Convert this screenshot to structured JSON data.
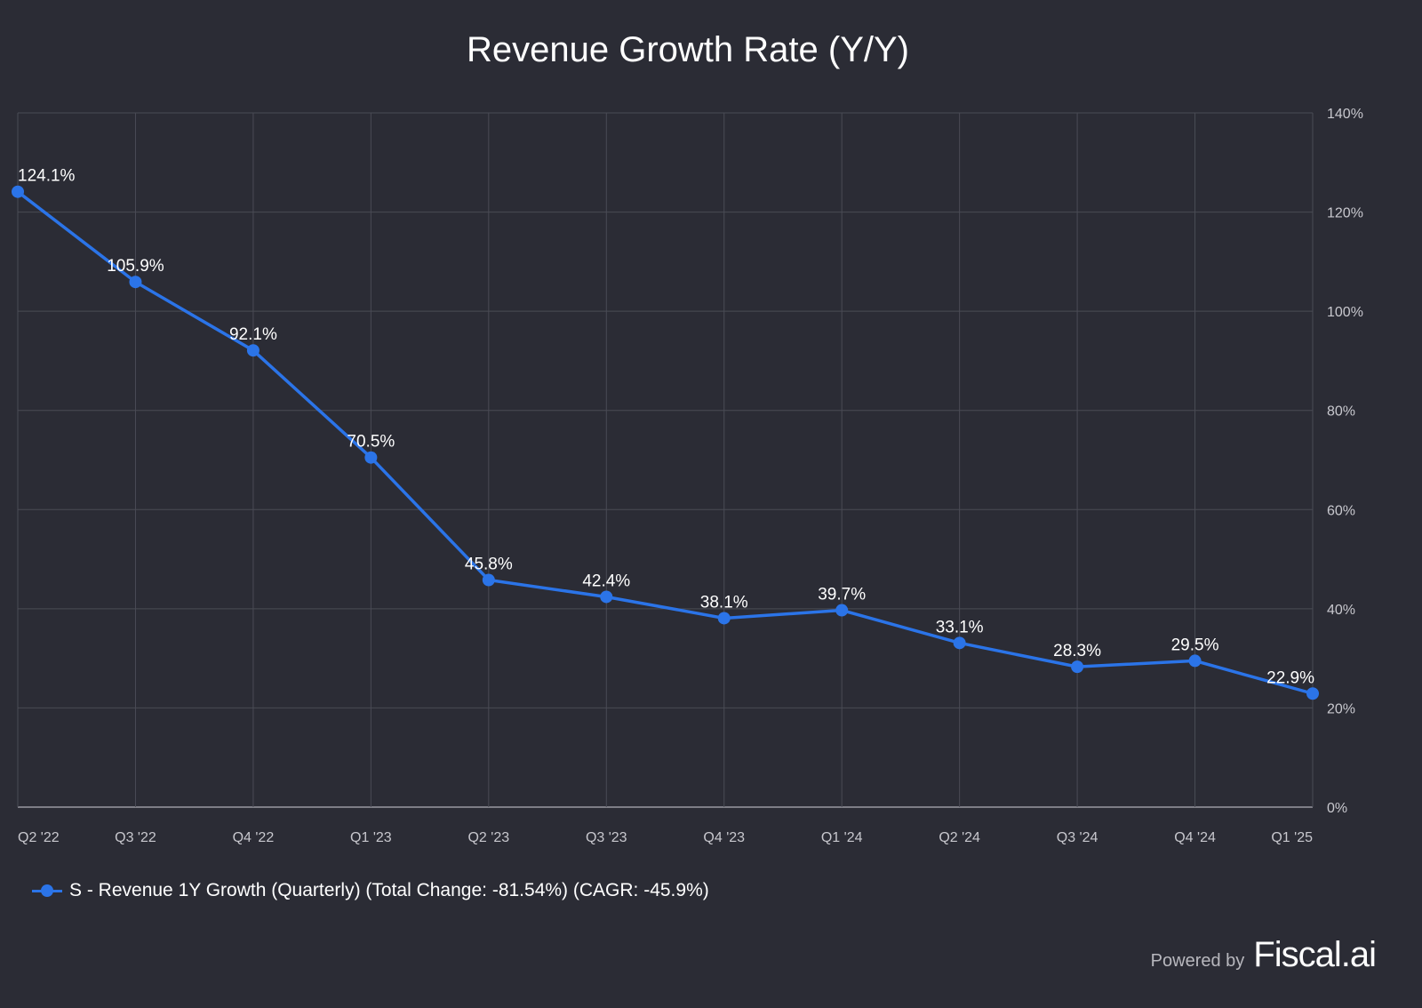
{
  "chart_data": {
    "type": "line",
    "title": "Revenue Growth Rate (Y/Y)",
    "categories": [
      "Q2 '22",
      "Q3 '22",
      "Q4 '22",
      "Q1 '23",
      "Q2 '23",
      "Q3 '23",
      "Q4 '23",
      "Q1 '24",
      "Q2 '24",
      "Q3 '24",
      "Q4 '24",
      "Q1 '25"
    ],
    "series": [
      {
        "name": "S - Revenue 1Y Growth (Quarterly) (Total Change: -81.54%) (CAGR: -45.9%)",
        "values": [
          124.1,
          105.9,
          92.1,
          70.5,
          45.8,
          42.4,
          38.1,
          39.7,
          33.1,
          28.3,
          29.5,
          22.9
        ],
        "labels": [
          "124.1%",
          "105.9%",
          "92.1%",
          "70.5%",
          "45.8%",
          "42.4%",
          "38.1%",
          "39.7%",
          "33.1%",
          "28.3%",
          "29.5%",
          "22.9%"
        ],
        "color": "#2b74e8"
      }
    ],
    "ylim": [
      0,
      140
    ],
    "yticks": [
      0,
      20,
      40,
      60,
      80,
      100,
      120,
      140
    ],
    "ytick_labels": [
      "0%",
      "20%",
      "40%",
      "60%",
      "80%",
      "100%",
      "120%",
      "140%"
    ],
    "y_axis_side": "right",
    "grid": true,
    "legend": "bottom-left",
    "xlabel": "",
    "ylabel": ""
  },
  "branding": {
    "powered_by": "Powered by",
    "logo": "Fiscal.ai"
  }
}
